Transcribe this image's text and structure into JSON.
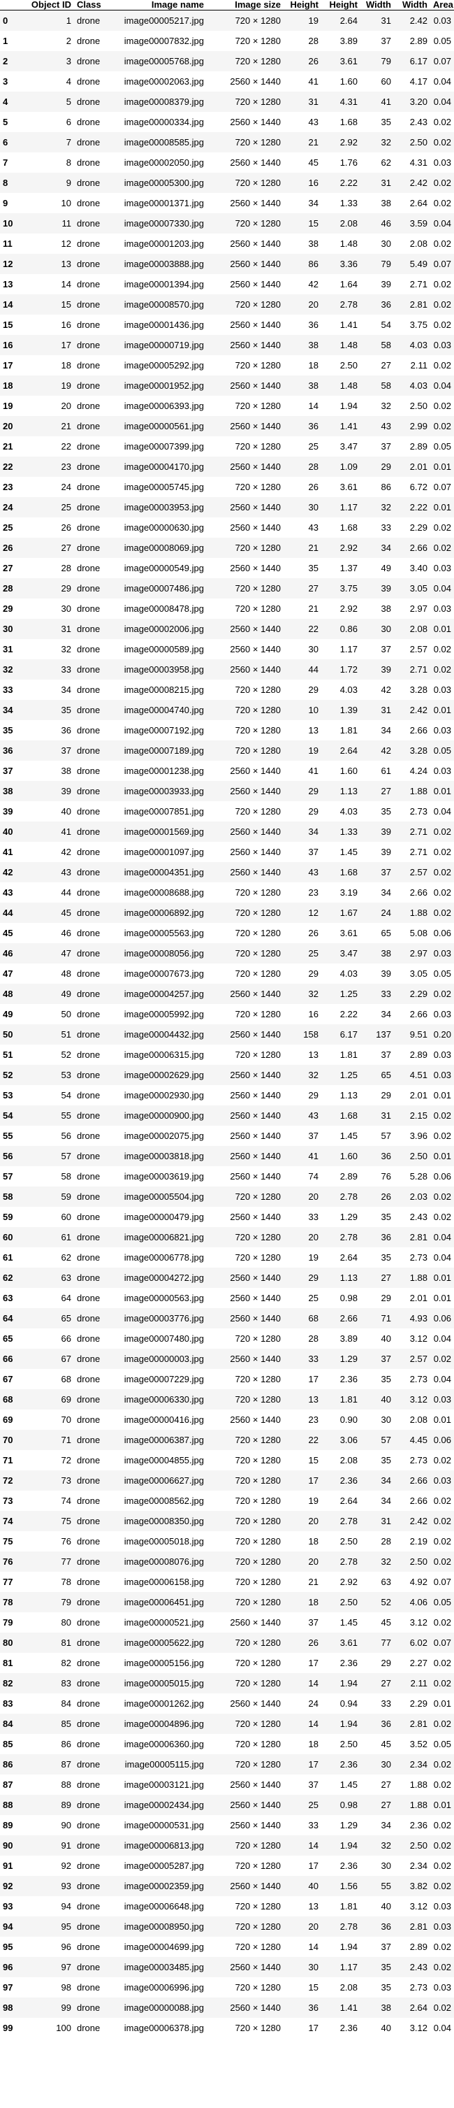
{
  "table": {
    "headers": [
      "",
      "Object ID",
      "Class",
      "Image name",
      "Image size",
      "Height",
      "Height",
      "Width",
      "Width",
      "Area"
    ],
    "rows": [
      [
        "0",
        "1",
        "drone",
        "image00005217.jpg",
        "720 × 1280",
        "19",
        "2.64",
        "31",
        "2.42",
        "0.03"
      ],
      [
        "1",
        "2",
        "drone",
        "image00007832.jpg",
        "720 × 1280",
        "28",
        "3.89",
        "37",
        "2.89",
        "0.05"
      ],
      [
        "2",
        "3",
        "drone",
        "image00005768.jpg",
        "720 × 1280",
        "26",
        "3.61",
        "79",
        "6.17",
        "0.07"
      ],
      [
        "3",
        "4",
        "drone",
        "image00002063.jpg",
        "2560 × 1440",
        "41",
        "1.60",
        "60",
        "4.17",
        "0.04"
      ],
      [
        "4",
        "5",
        "drone",
        "image00008379.jpg",
        "720 × 1280",
        "31",
        "4.31",
        "41",
        "3.20",
        "0.04"
      ],
      [
        "5",
        "6",
        "drone",
        "image00000334.jpg",
        "2560 × 1440",
        "43",
        "1.68",
        "35",
        "2.43",
        "0.02"
      ],
      [
        "6",
        "7",
        "drone",
        "image00008585.jpg",
        "720 × 1280",
        "21",
        "2.92",
        "32",
        "2.50",
        "0.02"
      ],
      [
        "7",
        "8",
        "drone",
        "image00002050.jpg",
        "2560 × 1440",
        "45",
        "1.76",
        "62",
        "4.31",
        "0.03"
      ],
      [
        "8",
        "9",
        "drone",
        "image00005300.jpg",
        "720 × 1280",
        "16",
        "2.22",
        "31",
        "2.42",
        "0.02"
      ],
      [
        "9",
        "10",
        "drone",
        "image00001371.jpg",
        "2560 × 1440",
        "34",
        "1.33",
        "38",
        "2.64",
        "0.02"
      ],
      [
        "10",
        "11",
        "drone",
        "image00007330.jpg",
        "720 × 1280",
        "15",
        "2.08",
        "46",
        "3.59",
        "0.04"
      ],
      [
        "11",
        "12",
        "drone",
        "image00001203.jpg",
        "2560 × 1440",
        "38",
        "1.48",
        "30",
        "2.08",
        "0.02"
      ],
      [
        "12",
        "13",
        "drone",
        "image00003888.jpg",
        "2560 × 1440",
        "86",
        "3.36",
        "79",
        "5.49",
        "0.07"
      ],
      [
        "13",
        "14",
        "drone",
        "image00001394.jpg",
        "2560 × 1440",
        "42",
        "1.64",
        "39",
        "2.71",
        "0.02"
      ],
      [
        "14",
        "15",
        "drone",
        "image00008570.jpg",
        "720 × 1280",
        "20",
        "2.78",
        "36",
        "2.81",
        "0.02"
      ],
      [
        "15",
        "16",
        "drone",
        "image00001436.jpg",
        "2560 × 1440",
        "36",
        "1.41",
        "54",
        "3.75",
        "0.02"
      ],
      [
        "16",
        "17",
        "drone",
        "image00000719.jpg",
        "2560 × 1440",
        "38",
        "1.48",
        "58",
        "4.03",
        "0.03"
      ],
      [
        "17",
        "18",
        "drone",
        "image00005292.jpg",
        "720 × 1280",
        "18",
        "2.50",
        "27",
        "2.11",
        "0.02"
      ],
      [
        "18",
        "19",
        "drone",
        "image00001952.jpg",
        "2560 × 1440",
        "38",
        "1.48",
        "58",
        "4.03",
        "0.04"
      ],
      [
        "19",
        "20",
        "drone",
        "image00006393.jpg",
        "720 × 1280",
        "14",
        "1.94",
        "32",
        "2.50",
        "0.02"
      ],
      [
        "20",
        "21",
        "drone",
        "image00000561.jpg",
        "2560 × 1440",
        "36",
        "1.41",
        "43",
        "2.99",
        "0.02"
      ],
      [
        "21",
        "22",
        "drone",
        "image00007399.jpg",
        "720 × 1280",
        "25",
        "3.47",
        "37",
        "2.89",
        "0.05"
      ],
      [
        "22",
        "23",
        "drone",
        "image00004170.jpg",
        "2560 × 1440",
        "28",
        "1.09",
        "29",
        "2.01",
        "0.01"
      ],
      [
        "23",
        "24",
        "drone",
        "image00005745.jpg",
        "720 × 1280",
        "26",
        "3.61",
        "86",
        "6.72",
        "0.07"
      ],
      [
        "24",
        "25",
        "drone",
        "image00003953.jpg",
        "2560 × 1440",
        "30",
        "1.17",
        "32",
        "2.22",
        "0.01"
      ],
      [
        "25",
        "26",
        "drone",
        "image00000630.jpg",
        "2560 × 1440",
        "43",
        "1.68",
        "33",
        "2.29",
        "0.02"
      ],
      [
        "26",
        "27",
        "drone",
        "image00008069.jpg",
        "720 × 1280",
        "21",
        "2.92",
        "34",
        "2.66",
        "0.02"
      ],
      [
        "27",
        "28",
        "drone",
        "image00000549.jpg",
        "2560 × 1440",
        "35",
        "1.37",
        "49",
        "3.40",
        "0.03"
      ],
      [
        "28",
        "29",
        "drone",
        "image00007486.jpg",
        "720 × 1280",
        "27",
        "3.75",
        "39",
        "3.05",
        "0.04"
      ],
      [
        "29",
        "30",
        "drone",
        "image00008478.jpg",
        "720 × 1280",
        "21",
        "2.92",
        "38",
        "2.97",
        "0.03"
      ],
      [
        "30",
        "31",
        "drone",
        "image00002006.jpg",
        "2560 × 1440",
        "22",
        "0.86",
        "30",
        "2.08",
        "0.01"
      ],
      [
        "31",
        "32",
        "drone",
        "image00000589.jpg",
        "2560 × 1440",
        "30",
        "1.17",
        "37",
        "2.57",
        "0.02"
      ],
      [
        "32",
        "33",
        "drone",
        "image00003958.jpg",
        "2560 × 1440",
        "44",
        "1.72",
        "39",
        "2.71",
        "0.02"
      ],
      [
        "33",
        "34",
        "drone",
        "image00008215.jpg",
        "720 × 1280",
        "29",
        "4.03",
        "42",
        "3.28",
        "0.03"
      ],
      [
        "34",
        "35",
        "drone",
        "image00004740.jpg",
        "720 × 1280",
        "10",
        "1.39",
        "31",
        "2.42",
        "0.01"
      ],
      [
        "35",
        "36",
        "drone",
        "image00007192.jpg",
        "720 × 1280",
        "13",
        "1.81",
        "34",
        "2.66",
        "0.03"
      ],
      [
        "36",
        "37",
        "drone",
        "image00007189.jpg",
        "720 × 1280",
        "19",
        "2.64",
        "42",
        "3.28",
        "0.05"
      ],
      [
        "37",
        "38",
        "drone",
        "image00001238.jpg",
        "2560 × 1440",
        "41",
        "1.60",
        "61",
        "4.24",
        "0.03"
      ],
      [
        "38",
        "39",
        "drone",
        "image00003933.jpg",
        "2560 × 1440",
        "29",
        "1.13",
        "27",
        "1.88",
        "0.01"
      ],
      [
        "39",
        "40",
        "drone",
        "image00007851.jpg",
        "720 × 1280",
        "29",
        "4.03",
        "35",
        "2.73",
        "0.04"
      ],
      [
        "40",
        "41",
        "drone",
        "image00001569.jpg",
        "2560 × 1440",
        "34",
        "1.33",
        "39",
        "2.71",
        "0.02"
      ],
      [
        "41",
        "42",
        "drone",
        "image00001097.jpg",
        "2560 × 1440",
        "37",
        "1.45",
        "39",
        "2.71",
        "0.02"
      ],
      [
        "42",
        "43",
        "drone",
        "image00004351.jpg",
        "2560 × 1440",
        "43",
        "1.68",
        "37",
        "2.57",
        "0.02"
      ],
      [
        "43",
        "44",
        "drone",
        "image00008688.jpg",
        "720 × 1280",
        "23",
        "3.19",
        "34",
        "2.66",
        "0.02"
      ],
      [
        "44",
        "45",
        "drone",
        "image00006892.jpg",
        "720 × 1280",
        "12",
        "1.67",
        "24",
        "1.88",
        "0.02"
      ],
      [
        "45",
        "46",
        "drone",
        "image00005563.jpg",
        "720 × 1280",
        "26",
        "3.61",
        "65",
        "5.08",
        "0.06"
      ],
      [
        "46",
        "47",
        "drone",
        "image00008056.jpg",
        "720 × 1280",
        "25",
        "3.47",
        "38",
        "2.97",
        "0.03"
      ],
      [
        "47",
        "48",
        "drone",
        "image00007673.jpg",
        "720 × 1280",
        "29",
        "4.03",
        "39",
        "3.05",
        "0.05"
      ],
      [
        "48",
        "49",
        "drone",
        "image00004257.jpg",
        "2560 × 1440",
        "32",
        "1.25",
        "33",
        "2.29",
        "0.02"
      ],
      [
        "49",
        "50",
        "drone",
        "image00005992.jpg",
        "720 × 1280",
        "16",
        "2.22",
        "34",
        "2.66",
        "0.03"
      ],
      [
        "50",
        "51",
        "drone",
        "image00004432.jpg",
        "2560 × 1440",
        "158",
        "6.17",
        "137",
        "9.51",
        "0.20"
      ],
      [
        "51",
        "52",
        "drone",
        "image00006315.jpg",
        "720 × 1280",
        "13",
        "1.81",
        "37",
        "2.89",
        "0.03"
      ],
      [
        "52",
        "53",
        "drone",
        "image00002629.jpg",
        "2560 × 1440",
        "32",
        "1.25",
        "65",
        "4.51",
        "0.03"
      ],
      [
        "53",
        "54",
        "drone",
        "image00002930.jpg",
        "2560 × 1440",
        "29",
        "1.13",
        "29",
        "2.01",
        "0.01"
      ],
      [
        "54",
        "55",
        "drone",
        "image00000900.jpg",
        "2560 × 1440",
        "43",
        "1.68",
        "31",
        "2.15",
        "0.02"
      ],
      [
        "55",
        "56",
        "drone",
        "image00002075.jpg",
        "2560 × 1440",
        "37",
        "1.45",
        "57",
        "3.96",
        "0.02"
      ],
      [
        "56",
        "57",
        "drone",
        "image00003818.jpg",
        "2560 × 1440",
        "41",
        "1.60",
        "36",
        "2.50",
        "0.01"
      ],
      [
        "57",
        "58",
        "drone",
        "image00003619.jpg",
        "2560 × 1440",
        "74",
        "2.89",
        "76",
        "5.28",
        "0.06"
      ],
      [
        "58",
        "59",
        "drone",
        "image00005504.jpg",
        "720 × 1280",
        "20",
        "2.78",
        "26",
        "2.03",
        "0.02"
      ],
      [
        "59",
        "60",
        "drone",
        "image00000479.jpg",
        "2560 × 1440",
        "33",
        "1.29",
        "35",
        "2.43",
        "0.02"
      ],
      [
        "60",
        "61",
        "drone",
        "image00006821.jpg",
        "720 × 1280",
        "20",
        "2.78",
        "36",
        "2.81",
        "0.04"
      ],
      [
        "61",
        "62",
        "drone",
        "image00006778.jpg",
        "720 × 1280",
        "19",
        "2.64",
        "35",
        "2.73",
        "0.04"
      ],
      [
        "62",
        "63",
        "drone",
        "image00004272.jpg",
        "2560 × 1440",
        "29",
        "1.13",
        "27",
        "1.88",
        "0.01"
      ],
      [
        "63",
        "64",
        "drone",
        "image00000563.jpg",
        "2560 × 1440",
        "25",
        "0.98",
        "29",
        "2.01",
        "0.01"
      ],
      [
        "64",
        "65",
        "drone",
        "image00003776.jpg",
        "2560 × 1440",
        "68",
        "2.66",
        "71",
        "4.93",
        "0.06"
      ],
      [
        "65",
        "66",
        "drone",
        "image00007480.jpg",
        "720 × 1280",
        "28",
        "3.89",
        "40",
        "3.12",
        "0.04"
      ],
      [
        "66",
        "67",
        "drone",
        "image00000003.jpg",
        "2560 × 1440",
        "33",
        "1.29",
        "37",
        "2.57",
        "0.02"
      ],
      [
        "67",
        "68",
        "drone",
        "image00007229.jpg",
        "720 × 1280",
        "17",
        "2.36",
        "35",
        "2.73",
        "0.04"
      ],
      [
        "68",
        "69",
        "drone",
        "image00006330.jpg",
        "720 × 1280",
        "13",
        "1.81",
        "40",
        "3.12",
        "0.03"
      ],
      [
        "69",
        "70",
        "drone",
        "image00000416.jpg",
        "2560 × 1440",
        "23",
        "0.90",
        "30",
        "2.08",
        "0.01"
      ],
      [
        "70",
        "71",
        "drone",
        "image00006387.jpg",
        "720 × 1280",
        "22",
        "3.06",
        "57",
        "4.45",
        "0.06"
      ],
      [
        "71",
        "72",
        "drone",
        "image00004855.jpg",
        "720 × 1280",
        "15",
        "2.08",
        "35",
        "2.73",
        "0.02"
      ],
      [
        "72",
        "73",
        "drone",
        "image00006627.jpg",
        "720 × 1280",
        "17",
        "2.36",
        "34",
        "2.66",
        "0.03"
      ],
      [
        "73",
        "74",
        "drone",
        "image00008562.jpg",
        "720 × 1280",
        "19",
        "2.64",
        "34",
        "2.66",
        "0.02"
      ],
      [
        "74",
        "75",
        "drone",
        "image00008350.jpg",
        "720 × 1280",
        "20",
        "2.78",
        "31",
        "2.42",
        "0.02"
      ],
      [
        "75",
        "76",
        "drone",
        "image00005018.jpg",
        "720 × 1280",
        "18",
        "2.50",
        "28",
        "2.19",
        "0.02"
      ],
      [
        "76",
        "77",
        "drone",
        "image00008076.jpg",
        "720 × 1280",
        "20",
        "2.78",
        "32",
        "2.50",
        "0.02"
      ],
      [
        "77",
        "78",
        "drone",
        "image00006158.jpg",
        "720 × 1280",
        "21",
        "2.92",
        "63",
        "4.92",
        "0.07"
      ],
      [
        "78",
        "79",
        "drone",
        "image00006451.jpg",
        "720 × 1280",
        "18",
        "2.50",
        "52",
        "4.06",
        "0.05"
      ],
      [
        "79",
        "80",
        "drone",
        "image00000521.jpg",
        "2560 × 1440",
        "37",
        "1.45",
        "45",
        "3.12",
        "0.02"
      ],
      [
        "80",
        "81",
        "drone",
        "image00005622.jpg",
        "720 × 1280",
        "26",
        "3.61",
        "77",
        "6.02",
        "0.07"
      ],
      [
        "81",
        "82",
        "drone",
        "image00005156.jpg",
        "720 × 1280",
        "17",
        "2.36",
        "29",
        "2.27",
        "0.02"
      ],
      [
        "82",
        "83",
        "drone",
        "image00005015.jpg",
        "720 × 1280",
        "14",
        "1.94",
        "27",
        "2.11",
        "0.02"
      ],
      [
        "83",
        "84",
        "drone",
        "image00001262.jpg",
        "2560 × 1440",
        "24",
        "0.94",
        "33",
        "2.29",
        "0.01"
      ],
      [
        "84",
        "85",
        "drone",
        "image00004896.jpg",
        "720 × 1280",
        "14",
        "1.94",
        "36",
        "2.81",
        "0.02"
      ],
      [
        "85",
        "86",
        "drone",
        "image00006360.jpg",
        "720 × 1280",
        "18",
        "2.50",
        "45",
        "3.52",
        "0.05"
      ],
      [
        "86",
        "87",
        "drone",
        "image00005115.jpg",
        "720 × 1280",
        "17",
        "2.36",
        "30",
        "2.34",
        "0.02"
      ],
      [
        "87",
        "88",
        "drone",
        "image00003121.jpg",
        "2560 × 1440",
        "37",
        "1.45",
        "27",
        "1.88",
        "0.02"
      ],
      [
        "88",
        "89",
        "drone",
        "image00002434.jpg",
        "2560 × 1440",
        "25",
        "0.98",
        "27",
        "1.88",
        "0.01"
      ],
      [
        "89",
        "90",
        "drone",
        "image00000531.jpg",
        "2560 × 1440",
        "33",
        "1.29",
        "34",
        "2.36",
        "0.02"
      ],
      [
        "90",
        "91",
        "drone",
        "image00006813.jpg",
        "720 × 1280",
        "14",
        "1.94",
        "32",
        "2.50",
        "0.02"
      ],
      [
        "91",
        "92",
        "drone",
        "image00005287.jpg",
        "720 × 1280",
        "17",
        "2.36",
        "30",
        "2.34",
        "0.02"
      ],
      [
        "92",
        "93",
        "drone",
        "image00002359.jpg",
        "2560 × 1440",
        "40",
        "1.56",
        "55",
        "3.82",
        "0.02"
      ],
      [
        "93",
        "94",
        "drone",
        "image00006648.jpg",
        "720 × 1280",
        "13",
        "1.81",
        "40",
        "3.12",
        "0.03"
      ],
      [
        "94",
        "95",
        "drone",
        "image00008950.jpg",
        "720 × 1280",
        "20",
        "2.78",
        "36",
        "2.81",
        "0.03"
      ],
      [
        "95",
        "96",
        "drone",
        "image00004699.jpg",
        "720 × 1280",
        "14",
        "1.94",
        "37",
        "2.89",
        "0.02"
      ],
      [
        "96",
        "97",
        "drone",
        "image00003485.jpg",
        "2560 × 1440",
        "30",
        "1.17",
        "35",
        "2.43",
        "0.02"
      ],
      [
        "97",
        "98",
        "drone",
        "image00006996.jpg",
        "720 × 1280",
        "15",
        "2.08",
        "35",
        "2.73",
        "0.03"
      ],
      [
        "98",
        "99",
        "drone",
        "image00000088.jpg",
        "2560 × 1440",
        "36",
        "1.41",
        "38",
        "2.64",
        "0.02"
      ],
      [
        "99",
        "100",
        "drone",
        "image00006378.jpg",
        "720 × 1280",
        "17",
        "2.36",
        "40",
        "3.12",
        "0.04"
      ]
    ]
  }
}
